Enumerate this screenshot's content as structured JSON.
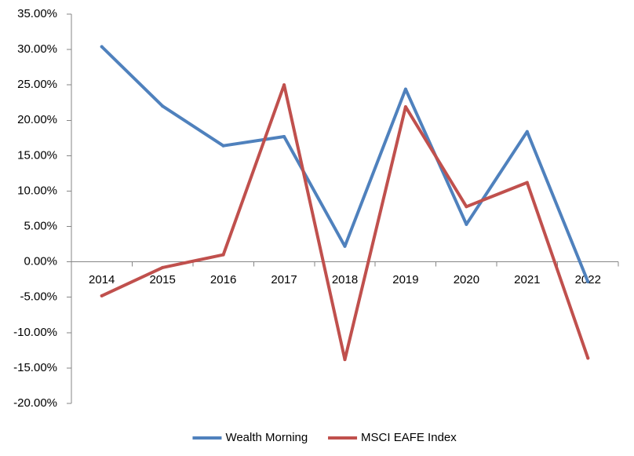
{
  "chart_data": {
    "type": "line",
    "title": "",
    "xlabel": "",
    "ylabel": "",
    "categories": [
      "2014",
      "2015",
      "2016",
      "2017",
      "2018",
      "2019",
      "2020",
      "2021",
      "2022"
    ],
    "ylim": [
      -20,
      35
    ],
    "ytick_step": 5,
    "ytick_labels": [
      "35.00%",
      "30.00%",
      "25.00%",
      "20.00%",
      "15.00%",
      "10.00%",
      "5.00%",
      "0.00%",
      "-5.00%",
      "-10.00%",
      "-15.00%",
      "-20.00%"
    ],
    "grid": false,
    "legend_position": "bottom",
    "series": [
      {
        "name": "Wealth Morning",
        "color": "#4F81BD",
        "values": [
          30.4,
          22.0,
          16.4,
          17.7,
          2.2,
          24.4,
          5.3,
          18.4,
          -2.8
        ]
      },
      {
        "name": "MSCI EAFE Index",
        "color": "#C0504D",
        "values": [
          -4.8,
          -0.8,
          1.0,
          25.0,
          -13.8,
          21.9,
          7.8,
          11.2,
          -13.6
        ]
      }
    ]
  }
}
